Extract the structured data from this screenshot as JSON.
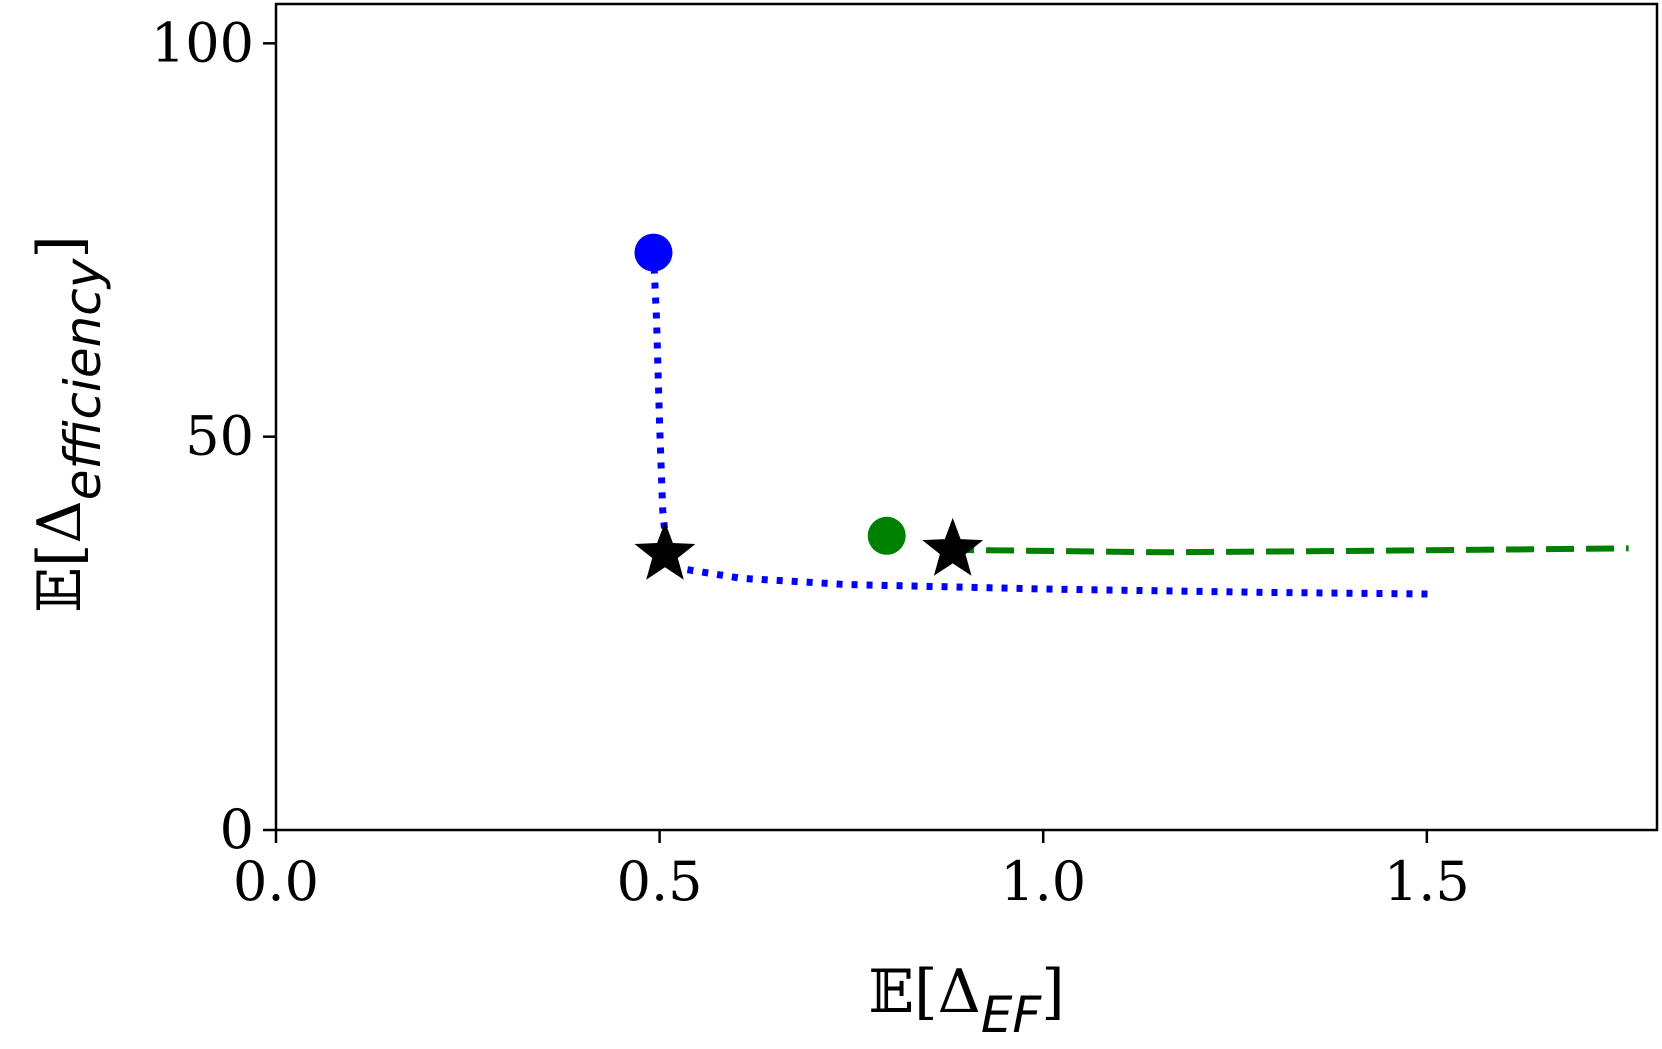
{
  "chart_data": {
    "type": "line",
    "xlabel": [
      "𝔼[Δ",
      "EF",
      "]"
    ],
    "ylabel": [
      "𝔼[Δ",
      "efficiency",
      "]"
    ],
    "xlim": [
      0,
      1.8
    ],
    "ylim": [
      0,
      105
    ],
    "xticks": [
      {
        "value": 0,
        "label": "0.0"
      },
      0.5,
      {
        "value": 1,
        "label": "1.0"
      },
      1.5
    ],
    "yticks": [
      0,
      50,
      100
    ],
    "grid": false,
    "series": [
      {
        "color": "#0000ff",
        "style": "dotted",
        "x": [
          0.492,
          0.496,
          0.5,
          0.504,
          0.51,
          0.523,
          0.606,
          0.744,
          0.882,
          1.019,
          1.157,
          1.295,
          1.501
        ],
        "y": [
          73.4,
          64.9,
          51.5,
          40.7,
          34.7,
          33.3,
          32.0,
          31.2,
          30.9,
          30.6,
          30.4,
          30.2,
          30.0
        ],
        "start": {
          "x": 0.492,
          "y": 73.4
        },
        "optimum": {
          "x": 0.507,
          "y": 35.1
        }
      },
      {
        "color": "#008000",
        "style": "dashed",
        "x": [
          0.875,
          0.895,
          1.157,
          1.433,
          1.763
        ],
        "y": [
          36.4,
          35.6,
          35.3,
          35.5,
          35.8
        ],
        "start": {
          "x": 0.796,
          "y": 37.4
        },
        "optimum": {
          "x": 0.882,
          "y": 35.6
        }
      }
    ]
  }
}
